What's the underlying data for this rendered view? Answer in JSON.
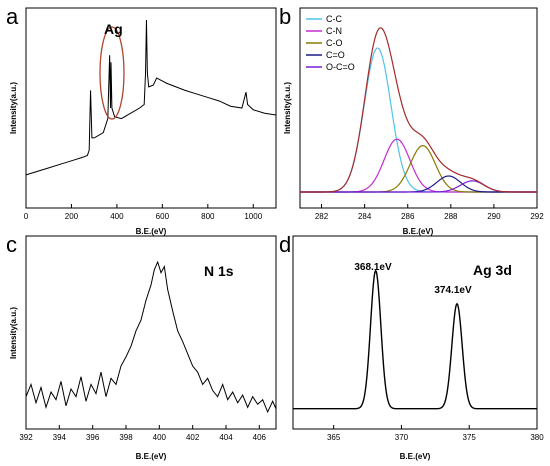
{
  "chart_data": [
    {
      "panel": "a",
      "type": "line",
      "xlabel": "B.E.(eV)",
      "ylabel": "Intensity(a.u.)",
      "xlim": [
        0,
        1100
      ],
      "xticks": [
        0,
        200,
        400,
        600,
        800,
        1000
      ],
      "annotations": [
        {
          "text": "Ag",
          "x": 380
        }
      ],
      "series": [
        {
          "x": [
            0,
            50,
            100,
            150,
            200,
            250,
            270,
            278,
            284,
            290,
            300,
            340,
            360,
            368,
            372,
            374,
            378,
            390,
            420,
            460,
            500,
            520,
            526,
            530,
            534,
            540,
            560,
            575,
            590,
            620,
            660,
            700,
            750,
            800,
            850,
            900,
            950,
            960,
            968,
            975,
            1000,
            1050,
            1100
          ],
          "y": [
            0.12,
            0.14,
            0.16,
            0.18,
            0.2,
            0.22,
            0.23,
            0.26,
            0.6,
            0.33,
            0.33,
            0.36,
            0.44,
            0.8,
            0.5,
            0.76,
            0.5,
            0.45,
            0.44,
            0.47,
            0.5,
            0.52,
            0.7,
            1.0,
            0.7,
            0.62,
            0.63,
            0.67,
            0.66,
            0.64,
            0.62,
            0.6,
            0.58,
            0.56,
            0.54,
            0.51,
            0.5,
            0.55,
            0.59,
            0.52,
            0.49,
            0.47,
            0.46
          ]
        }
      ]
    },
    {
      "panel": "b",
      "type": "line",
      "xlabel": "B.E.(eV)",
      "ylabel": "Intensity(a.u.)",
      "xlim": [
        281,
        292
      ],
      "xticks": [
        282,
        284,
        286,
        288,
        290,
        292
      ],
      "legend_position": "top-left",
      "legend": [
        {
          "label": "C-C",
          "color": "#4fc3e8"
        },
        {
          "label": "C-N",
          "color": "#c42bd0"
        },
        {
          "label": "C-O",
          "color": "#8b7a00"
        },
        {
          "label": "C=O",
          "color": "#1a1a8c"
        },
        {
          "label": "O-C=O",
          "color": "#7a1fd6"
        }
      ],
      "envelope_color": "#a52a2a",
      "baseline_color": "#d46b6b",
      "peaks": [
        {
          "name": "C-C",
          "center": 284.6,
          "height": 0.9,
          "sigma": 0.62
        },
        {
          "name": "C-N",
          "center": 285.5,
          "height": 0.33,
          "sigma": 0.6
        },
        {
          "name": "C-O",
          "center": 286.7,
          "height": 0.29,
          "sigma": 0.58
        },
        {
          "name": "C=O",
          "center": 287.9,
          "height": 0.1,
          "sigma": 0.55
        },
        {
          "name": "O-C=O",
          "center": 289.0,
          "height": 0.07,
          "sigma": 0.55
        }
      ]
    },
    {
      "panel": "c",
      "type": "line",
      "xlabel": "B.E.(eV)",
      "ylabel": "Intensity(a.u.)",
      "xlim": [
        392,
        407
      ],
      "xticks": [
        392,
        394,
        396,
        398,
        400,
        402,
        404,
        406
      ],
      "annotations": [
        {
          "text": "N 1s"
        }
      ],
      "series": [
        {
          "x": [
            392,
            392.3,
            392.6,
            392.9,
            393.2,
            393.5,
            393.8,
            394.1,
            394.4,
            394.7,
            395,
            395.3,
            395.6,
            395.9,
            396.2,
            396.5,
            396.8,
            397.1,
            397.4,
            397.7,
            398,
            398.3,
            398.6,
            398.9,
            399.2,
            399.5,
            399.7,
            399.9,
            400.1,
            400.3,
            400.5,
            400.8,
            401.1,
            401.4,
            401.7,
            402,
            402.3,
            402.6,
            402.9,
            403.2,
            403.5,
            403.8,
            404.1,
            404.4,
            404.7,
            405,
            405.3,
            405.6,
            405.9,
            406.2,
            406.5,
            406.8,
            407
          ],
          "y": [
            0.12,
            0.2,
            0.08,
            0.18,
            0.05,
            0.15,
            0.1,
            0.22,
            0.06,
            0.17,
            0.12,
            0.25,
            0.09,
            0.2,
            0.14,
            0.28,
            0.12,
            0.24,
            0.2,
            0.32,
            0.38,
            0.45,
            0.55,
            0.62,
            0.75,
            0.85,
            0.95,
            1.0,
            0.93,
            0.97,
            0.82,
            0.68,
            0.55,
            0.48,
            0.4,
            0.32,
            0.28,
            0.2,
            0.24,
            0.16,
            0.12,
            0.2,
            0.1,
            0.15,
            0.08,
            0.13,
            0.05,
            0.12,
            0.07,
            0.1,
            0.02,
            0.09,
            0.04
          ]
        }
      ]
    },
    {
      "panel": "d",
      "type": "line",
      "xlabel": "B.E.(eV)",
      "xlim": [
        362,
        380
      ],
      "xticks": [
        365,
        370,
        375,
        380
      ],
      "annotations": [
        {
          "text": "Ag 3d"
        },
        {
          "text": "368.1eV",
          "x": 368.1
        },
        {
          "text": "374.1eV",
          "x": 374.1
        }
      ],
      "peaks": [
        {
          "center": 368.1,
          "height": 1.0,
          "sigma": 0.38
        },
        {
          "center": 374.1,
          "height": 0.76,
          "sigma": 0.38
        }
      ],
      "baseline": 0.06
    }
  ],
  "panels": {
    "a": {
      "letter": "a",
      "annot": "Ag",
      "xlabel": "B.E.(eV)",
      "ylabel": "Intensity(a.u.)",
      "ticks": [
        "0",
        "200",
        "400",
        "600",
        "800",
        "1000"
      ]
    },
    "b": {
      "letter": "b",
      "xlabel": "B.E.(eV)",
      "ylabel": "Intensity(a.u.)",
      "ticks": [
        "282",
        "284",
        "286",
        "288",
        "290",
        "292"
      ],
      "legend": [
        "C-C",
        "C-N",
        "C-O",
        "C=O",
        "O-C=O"
      ]
    },
    "c": {
      "letter": "c",
      "annot": "N 1s",
      "xlabel": "B.E.(eV)",
      "ylabel": "Intensity(a.u.)",
      "ticks": [
        "392",
        "394",
        "396",
        "398",
        "400",
        "402",
        "404",
        "406"
      ]
    },
    "d": {
      "letter": "d",
      "annot": "Ag 3d",
      "peak1": "368.1eV",
      "peak2": "374.1eV",
      "xlabel": "B.E.(eV)",
      "ticks": [
        "365",
        "370",
        "375",
        "380"
      ]
    }
  }
}
